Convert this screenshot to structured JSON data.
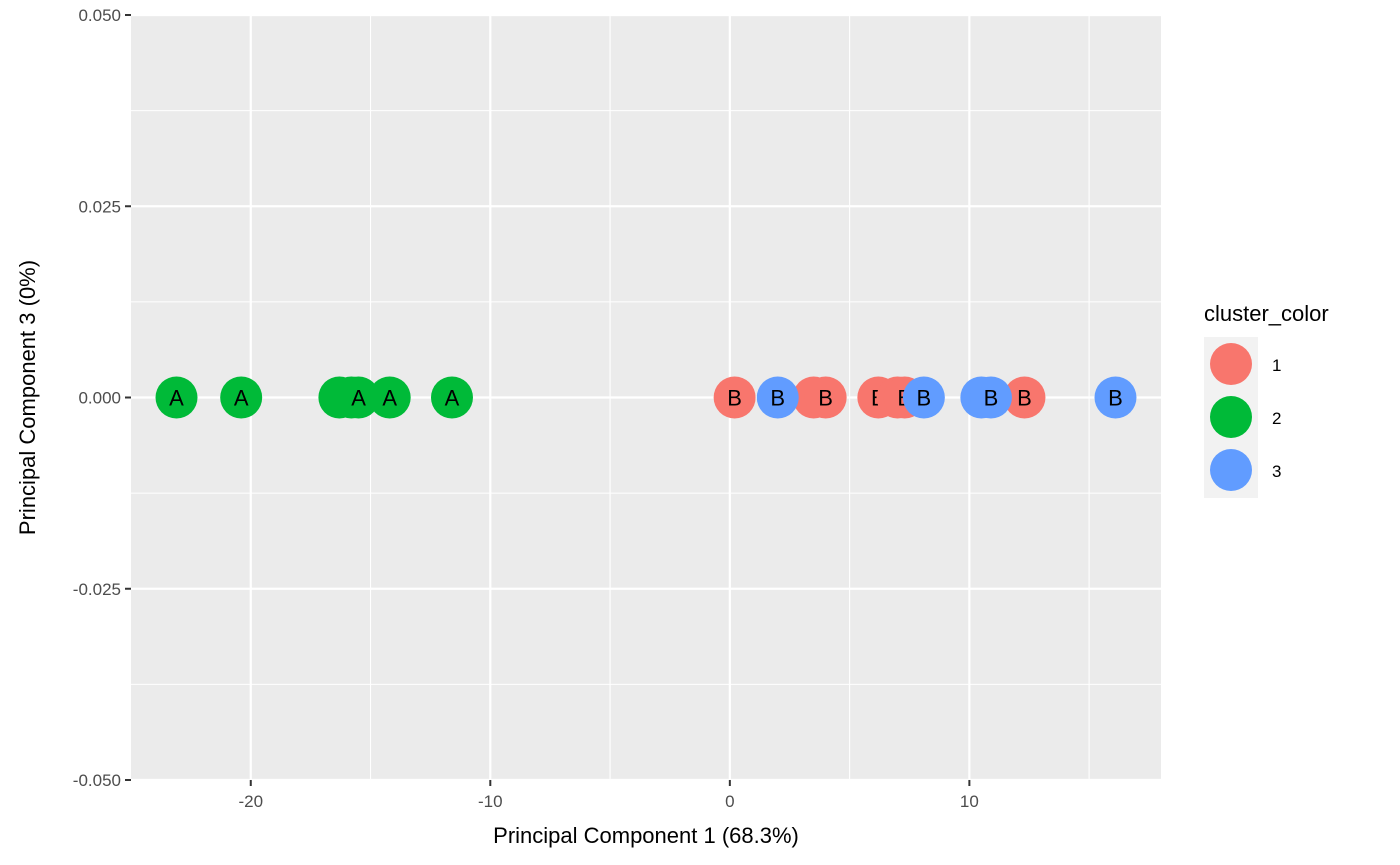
{
  "chart_data": {
    "type": "scatter",
    "xlabel": "Principal Component 1 (68.3%)",
    "ylabel": "Principal Component 3 (0%)",
    "xlim": [
      -25,
      18
    ],
    "ylim": [
      -0.05,
      0.05
    ],
    "x_ticks": [
      -20,
      -10,
      0,
      10
    ],
    "y_ticks": [
      -0.05,
      -0.025,
      0,
      0.025,
      0.05
    ],
    "x_tick_labels": [
      "-20",
      "-10",
      "0",
      "10"
    ],
    "y_tick_labels": [
      "-0.050",
      "-0.025",
      "0.000",
      "0.025",
      "0.050"
    ],
    "grid": true,
    "legend": {
      "title": "cluster_color",
      "position": "right",
      "entries": [
        {
          "label": "1",
          "color": "#F8766D"
        },
        {
          "label": "2",
          "color": "#00BA38"
        },
        {
          "label": "3",
          "color": "#619CFF"
        }
      ]
    },
    "points": [
      {
        "x": -23.1,
        "y": 0,
        "label": "A",
        "cluster": "2"
      },
      {
        "x": -20.4,
        "y": 0,
        "label": "A",
        "cluster": "2"
      },
      {
        "x": -16.3,
        "y": 0,
        "label": "A",
        "cluster": "2"
      },
      {
        "x": -15.8,
        "y": 0,
        "label": "A",
        "cluster": "2"
      },
      {
        "x": -15.5,
        "y": 0,
        "label": "A",
        "cluster": "2"
      },
      {
        "x": -14.2,
        "y": 0,
        "label": "A",
        "cluster": "2"
      },
      {
        "x": -11.6,
        "y": 0,
        "label": "A",
        "cluster": "2"
      },
      {
        "x": 0.2,
        "y": 0,
        "label": "B",
        "cluster": "1"
      },
      {
        "x": 3.5,
        "y": 0,
        "label": "B",
        "cluster": "1"
      },
      {
        "x": 4.0,
        "y": 0,
        "label": "B",
        "cluster": "1"
      },
      {
        "x": 6.2,
        "y": 0,
        "label": "B",
        "cluster": "1"
      },
      {
        "x": 7.0,
        "y": 0,
        "label": "B",
        "cluster": "1"
      },
      {
        "x": 7.3,
        "y": 0,
        "label": "B",
        "cluster": "1"
      },
      {
        "x": 12.3,
        "y": 0,
        "label": "B",
        "cluster": "1"
      },
      {
        "x": 2.0,
        "y": 0,
        "label": "B",
        "cluster": "3"
      },
      {
        "x": 8.1,
        "y": 0,
        "label": "B",
        "cluster": "3"
      },
      {
        "x": 10.5,
        "y": 0,
        "label": "B",
        "cluster": "3"
      },
      {
        "x": 10.9,
        "y": 0,
        "label": "B",
        "cluster": "3"
      },
      {
        "x": 16.1,
        "y": 0,
        "label": "B",
        "cluster": "3"
      }
    ]
  }
}
